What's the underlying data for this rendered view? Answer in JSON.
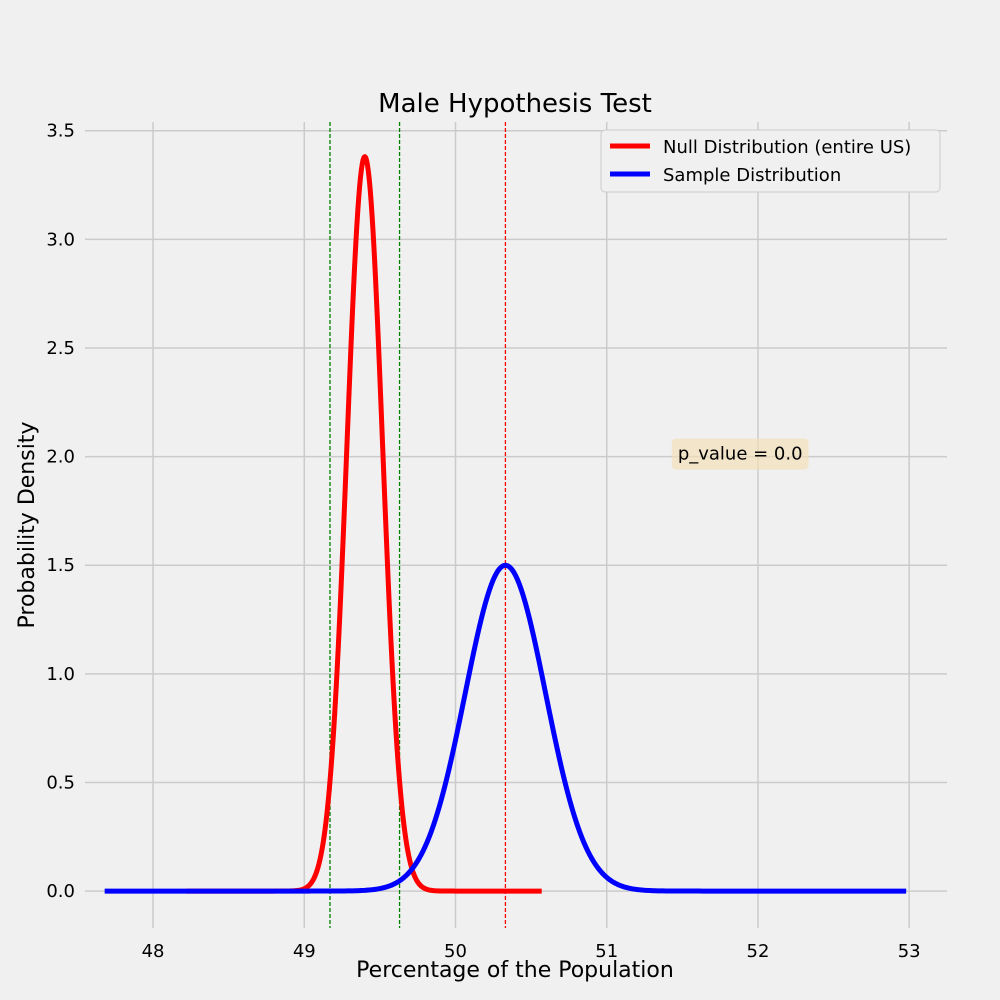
{
  "chart_data": {
    "type": "line",
    "title": "Male Hypothesis Test",
    "xlabel": "Percentage of the Population",
    "ylabel": "Probability Density",
    "xlim": [
      47.55,
      53.25
    ],
    "ylim": [
      -0.17,
      3.54
    ],
    "xticks": [
      48,
      49,
      50,
      51,
      52,
      53
    ],
    "xtick_labels": [
      "48",
      "49",
      "50",
      "51",
      "52",
      "53"
    ],
    "yticks": [
      0.0,
      0.5,
      1.0,
      1.5,
      2.0,
      2.5,
      3.0,
      3.5
    ],
    "ytick_labels": [
      "0.0",
      "0.5",
      "1.0",
      "1.5",
      "2.0",
      "2.5",
      "3.0",
      "3.5"
    ],
    "grid": true,
    "legend_position": "top-right",
    "series": [
      {
        "name": "Null Distribution (entire US)",
        "color": "#ff0000",
        "distribution": "normal",
        "mean": 49.4,
        "std": 0.118,
        "x_range": [
          48.22,
          50.57
        ]
      },
      {
        "name": "Sample Distribution",
        "color": "#0000ff",
        "distribution": "normal",
        "mean": 50.33,
        "std": 0.266,
        "x_range": [
          47.68,
          52.98
        ]
      }
    ],
    "vlines": [
      {
        "x": 49.17,
        "color": "#008000",
        "style": "dashed"
      },
      {
        "x": 49.63,
        "color": "#008000",
        "style": "dashed"
      },
      {
        "x": 50.33,
        "color": "#ff0000",
        "style": "dashed"
      }
    ],
    "annotation": {
      "text": "p_value = 0.0",
      "x": 51.47,
      "y": 2.0,
      "box_color": "#f5deb3"
    }
  }
}
